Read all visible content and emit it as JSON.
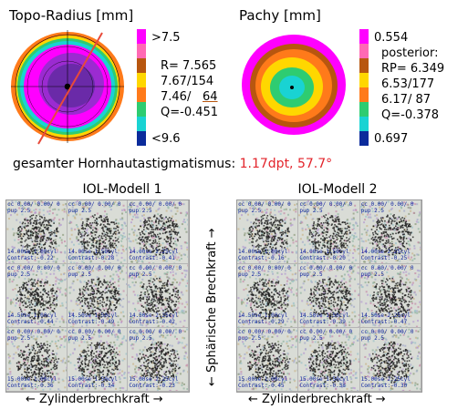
{
  "topo": {
    "title": "Topo-Radius [mm]",
    "legend_top": ">7.5",
    "legend_bottom": "<9.6",
    "legend_lines": [
      "R= 7.565",
      "7.67/154",
      "7.46/",
      "Q=-0.451"
    ],
    "legend_axis_value": "64",
    "colors": [
      "#ff00ff",
      "#ff69b4",
      "#b8560f",
      "#ffd700",
      "#ff7a1a",
      "#2ecc71",
      "#19d3d3",
      "#0b2b9b"
    ]
  },
  "pachy": {
    "title": "Pachy [mm]",
    "legend_top": "0.554",
    "legend_lines": [
      "posterior:",
      "RP= 6.349",
      "6.53/177",
      "6.17/ 87",
      "Q=-0.378"
    ],
    "legend_bottom": "0.697",
    "colors": [
      "#ff00ff",
      "#ff69b4",
      "#b8560f",
      "#ffd700",
      "#ff7a1a",
      "#2ecc71",
      "#19d3d3",
      "#0b2b9b"
    ]
  },
  "astigmatism": {
    "label": "gesamter Hornhautastigmatismus:",
    "value": "1.17dpt, 57.7°"
  },
  "iol": {
    "model1_title": "IOL-Modell 1",
    "model2_title": "IOL-Modell 2",
    "vertical_axis": "← Sphärische Brechkraft →",
    "horizontal_axis1": "← Zylinderbrechkraft →",
    "horizontal_axis2": "← Zylinderbrechkraft →",
    "model1_cells": [
      {
        "top1": "cc 0.00/ 0.00/ 0",
        "top2": "pup 2.5",
        "bot1": "14.00se 1.00cyl",
        "bot2": "Contrast:-0.22"
      },
      {
        "top1": "cc 0.00/ 0.00/ 0",
        "top2": "pup 2.5",
        "bot1": "14.00se 1.50cyl",
        "bot2": "Contrast:-0.28"
      },
      {
        "top1": "cc 0.00/ 0.00/ 0",
        "top2": "pup 2.5",
        "bot1": "14.00se 2.25cyl",
        "bot2": "Contrast:-0.41"
      },
      {
        "top1": "cc 0.00/ 0.00/ 0",
        "top2": "pup 2.5",
        "bot1": "14.50se 1.00cyl",
        "bot2": "Contrast:-0.44"
      },
      {
        "top1": "cc 0.00/ 0.00/ 0",
        "top2": "pup 2.5",
        "bot1": "14.50se 1.50cyl",
        "bot2": "Contrast:-0.49"
      },
      {
        "top1": "cc 0.00/ 0.00/ 0",
        "top2": "pup 2.5",
        "bot1": "14.50se 2.25cyl",
        "bot2": "Contrast:-0.42"
      },
      {
        "top1": "cc 0.00/ 0.00/ 0",
        "top2": "pup 2.5",
        "bot1": "15.00se 1.00cyl",
        "bot2": "Contrast:-0.36"
      },
      {
        "top1": "cc 0.00/ 0.00/ 0",
        "top2": "pup 2.5",
        "bot1": "15.00se 1.50cyl",
        "bot2": "Contrast:-0.34"
      },
      {
        "top1": "cc 0.00/ 0.00/ 0",
        "top2": "pup 2.5",
        "bot1": "15.00se 2.25cyl",
        "bot2": "Contrast:-0.23"
      }
    ],
    "model2_cells": [
      {
        "top1": "cc 0.00/ 0.00/ 0",
        "top2": "pup 2.5",
        "bot1": "14.00se 1.00cyl",
        "bot2": "Contrast:-0.16"
      },
      {
        "top1": "cc 0.00/ 0.00/ 0",
        "top2": "pup 2.5",
        "bot1": "14.00se 1.50cyl",
        "bot2": "Contrast:-0.20"
      },
      {
        "top1": "cc 0.00/ 0.00/ 0",
        "top2": "pup 2.5",
        "bot1": "14.00se 2.25cyl",
        "bot2": "Contrast:-0.25"
      },
      {
        "top1": "cc 0.00/ 0.00/ 0",
        "top2": "pup 2.5",
        "bot1": "14.50se 1.00cyl",
        "bot2": "Contrast:-0.29"
      },
      {
        "top1": "cc 0.00/ 0.00/ 0",
        "top2": "pup 2.5",
        "bot1": "14.50se 1.50cyl",
        "bot2": "Contrast:-0.39"
      },
      {
        "top1": "cc 0.00/ 0.00/ 0",
        "top2": "pup 2.5",
        "bot1": "14.50se 2.25cyl",
        "bot2": "Contrast:-0.47"
      },
      {
        "top1": "cc 0.00/ 0.00/ 0",
        "top2": "pup 2.5",
        "bot1": "15.00se 1.00cyl",
        "bot2": "Contrast:-0.45"
      },
      {
        "top1": "cc 0.00/ 0.00/ 0",
        "top2": "pup 2.5",
        "bot1": "15.00se 1.50cyl",
        "bot2": "Contrast:-0.38"
      },
      {
        "top1": "cc 0.00/ 0.00/ 0",
        "top2": "pup 2.5",
        "bot1": "15.00se 2.25cyl",
        "bot2": "Contrast:-0.30"
      }
    ]
  }
}
